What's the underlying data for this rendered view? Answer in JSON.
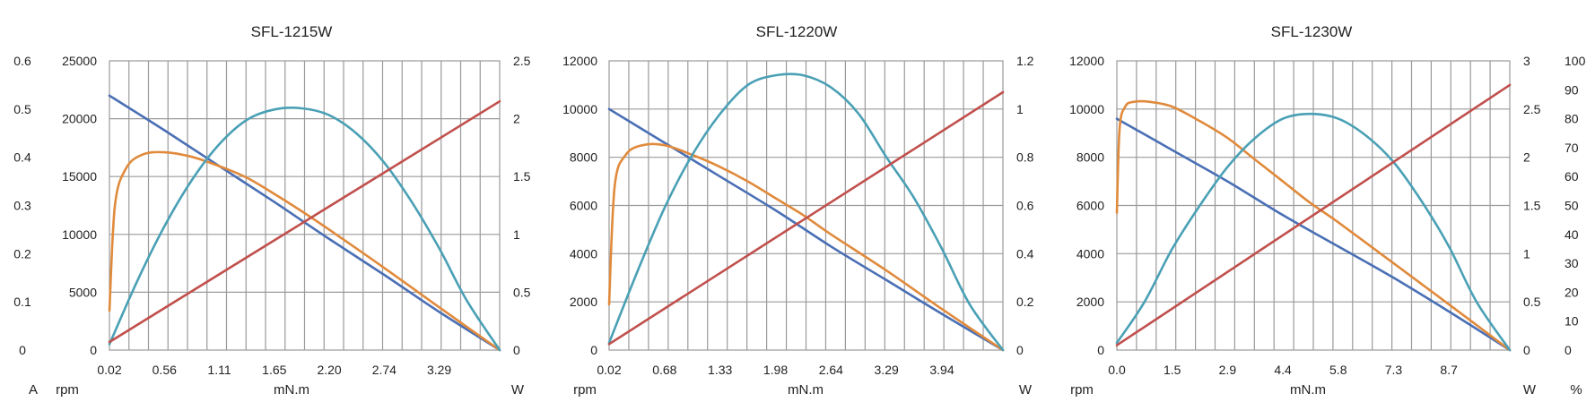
{
  "colors": {
    "current": "#4a6fb5",
    "efficiency": "#e08a3c",
    "power": "#4aa0b5",
    "speed": "#c0504d",
    "grid": "#9a9a9a"
  },
  "chart_data": [
    {
      "type": "line",
      "title": "SFL-1215W",
      "xlabel": "mN.m",
      "x_ticks": [
        "0.02",
        "0.56",
        "1.11",
        "1.65",
        "2.20",
        "2.74",
        "3.29"
      ],
      "x_max_tick_units": 7.1,
      "left_outer_unit": "A",
      "left_outer_ticks": [
        "0",
        "0.1",
        "0.2",
        "0.3",
        "0.4",
        "0.5",
        "0.6"
      ],
      "left_inner_unit": "rpm",
      "left_inner_ticks": [
        "0",
        "5000",
        "10000",
        "15000",
        "20000",
        "25000"
      ],
      "y_range": [
        0,
        25000
      ],
      "right_unit": "W",
      "right_ticks": [
        "0",
        "0.5",
        "1",
        "1.5",
        "2",
        "2.5"
      ],
      "series": [
        {
          "role": "current",
          "x": [
            0.0,
            1.0,
            2.0,
            3.0,
            4.0,
            5.0,
            6.0,
            7.1
          ],
          "y": [
            22000,
            19000,
            15900,
            12800,
            9600,
            6500,
            3300,
            0
          ]
        },
        {
          "role": "efficiency",
          "x": [
            0.0,
            0.1,
            0.3,
            0.6,
            1.0,
            1.5,
            2.0,
            2.5,
            3.0,
            3.5,
            4.0,
            5.0,
            6.0,
            7.1
          ],
          "y": [
            3400,
            12500,
            15700,
            16900,
            17100,
            16700,
            15900,
            14900,
            13500,
            12000,
            10400,
            7100,
            3700,
            0
          ]
        },
        {
          "role": "power",
          "x": [
            0.0,
            0.5,
            1.0,
            1.5,
            2.0,
            2.5,
            3.0,
            3.5,
            4.0,
            4.5,
            5.0,
            5.5,
            6.0,
            6.5,
            7.1
          ],
          "y": [
            500,
            5900,
            10700,
            14700,
            17800,
            19900,
            20800,
            20900,
            20300,
            18700,
            16200,
            12800,
            8800,
            4300,
            0
          ]
        },
        {
          "role": "speed",
          "x": [
            0.0,
            7.1
          ],
          "y": [
            700,
            21500
          ]
        }
      ]
    },
    {
      "type": "line",
      "title": "SFL-1220W",
      "xlabel": "mN.m",
      "x_ticks": [
        "0.02",
        "0.68",
        "1.33",
        "1.98",
        "2.64",
        "3.29",
        "3.94"
      ],
      "x_max_tick_units": 7.1,
      "left_inner_unit": "rpm",
      "left_inner_ticks": [
        "0",
        "2000",
        "4000",
        "6000",
        "8000",
        "10000",
        "12000"
      ],
      "y_range": [
        0,
        12000
      ],
      "right_unit": "W",
      "right_ticks": [
        "0",
        "0.2",
        "0.4",
        "0.6",
        "0.8",
        "1",
        "1.2"
      ],
      "series": [
        {
          "role": "current",
          "x": [
            0.0,
            1.0,
            2.0,
            3.0,
            4.0,
            5.0,
            6.0,
            7.1
          ],
          "y": [
            10000,
            8600,
            7200,
            5800,
            4300,
            2900,
            1500,
            0
          ]
        },
        {
          "role": "efficiency",
          "x": [
            0.0,
            0.1,
            0.3,
            0.6,
            1.0,
            1.5,
            2.0,
            2.5,
            3.0,
            3.5,
            4.0,
            5.0,
            6.0,
            7.1
          ],
          "y": [
            1900,
            6800,
            8100,
            8500,
            8500,
            8100,
            7600,
            7000,
            6300,
            5600,
            4800,
            3300,
            1700,
            0
          ]
        },
        {
          "role": "power",
          "x": [
            0.0,
            0.5,
            1.0,
            1.5,
            2.0,
            2.5,
            3.0,
            3.5,
            4.0,
            4.5,
            5.0,
            5.5,
            6.0,
            6.5,
            7.1
          ],
          "y": [
            300,
            3200,
            5900,
            8100,
            9800,
            11000,
            11400,
            11400,
            10900,
            9800,
            8000,
            6300,
            4200,
            1900,
            0
          ]
        },
        {
          "role": "speed",
          "x": [
            0.0,
            7.1
          ],
          "y": [
            250,
            10700
          ]
        }
      ]
    },
    {
      "type": "line",
      "title": "SFL-1230W",
      "xlabel": "mN.m",
      "x_ticks": [
        "0.0",
        "1.5",
        "2.9",
        "4.4",
        "5.8",
        "7.3",
        "8.7"
      ],
      "x_max_tick_units": 7.1,
      "left_inner_unit": "rpm",
      "left_inner_ticks": [
        "0",
        "2000",
        "4000",
        "6000",
        "8000",
        "10000",
        "12000"
      ],
      "y_range": [
        0,
        12000
      ],
      "right_unit": "W",
      "right_ticks": [
        "0",
        "0.5",
        "1",
        "1.5",
        "2",
        "2.5",
        "3"
      ],
      "right_outer_unit": "%",
      "right_outer_ticks": [
        "0",
        "10",
        "20",
        "30",
        "40",
        "50",
        "60",
        "70",
        "80",
        "90",
        "100"
      ],
      "series": [
        {
          "role": "current",
          "x": [
            0.0,
            1.0,
            2.0,
            3.0,
            4.0,
            5.0,
            6.0,
            7.1
          ],
          "y": [
            9600,
            8300,
            7000,
            5600,
            4300,
            3000,
            1600,
            0
          ]
        },
        {
          "role": "efficiency",
          "x": [
            0.0,
            0.05,
            0.15,
            0.3,
            0.6,
            1.0,
            1.5,
            2.0,
            2.5,
            3.0,
            3.5,
            4.0,
            5.0,
            6.0,
            7.1
          ],
          "y": [
            5700,
            9200,
            10100,
            10300,
            10300,
            10100,
            9500,
            8800,
            7900,
            7000,
            6100,
            5300,
            3600,
            1900,
            0
          ]
        },
        {
          "role": "power",
          "x": [
            0.0,
            0.5,
            1.0,
            1.5,
            2.0,
            2.5,
            3.0,
            3.5,
            4.0,
            4.5,
            5.0,
            5.5,
            6.0,
            6.5,
            7.1
          ],
          "y": [
            300,
            2000,
            4200,
            6000,
            7600,
            8800,
            9600,
            9800,
            9600,
            8900,
            7800,
            6200,
            4300,
            2000,
            0
          ]
        },
        {
          "role": "speed",
          "x": [
            0.0,
            7.1
          ],
          "y": [
            200,
            11000
          ]
        }
      ]
    }
  ]
}
